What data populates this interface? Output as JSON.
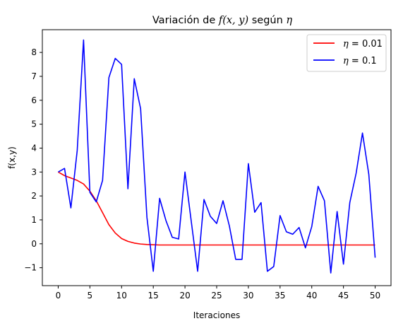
{
  "chart_data": {
    "type": "line",
    "title": "Variación de f(x, y) según η",
    "title_parts": {
      "prefix": "Variación de ",
      "func": "f(x, y)",
      "middle": " según ",
      "symbol": "η"
    },
    "xlabel": "Iteraciones",
    "ylabel": "f(x,y)",
    "xlim": [
      -2.5,
      52.5
    ],
    "ylim": [
      -1.75,
      8.95
    ],
    "xticks": [
      0,
      5,
      10,
      15,
      20,
      25,
      30,
      35,
      40,
      45,
      50
    ],
    "yticks": [
      -1,
      0,
      1,
      2,
      3,
      4,
      5,
      6,
      7,
      8
    ],
    "grid": false,
    "legend_position": "top-right",
    "series": [
      {
        "name": "η = 0.01",
        "legend_lhs": "η",
        "legend_rhs": "0.01",
        "color": "#ff0000",
        "x": [
          0,
          1,
          2,
          3,
          4,
          5,
          6,
          7,
          8,
          9,
          10,
          11,
          12,
          13,
          14,
          15,
          16,
          17,
          18,
          19,
          20,
          21,
          22,
          23,
          24,
          25,
          26,
          27,
          28,
          29,
          30,
          31,
          32,
          33,
          34,
          35,
          36,
          37,
          38,
          39,
          40,
          41,
          42,
          43,
          44,
          45,
          46,
          47,
          48,
          49,
          50
        ],
        "y": [
          3.0,
          2.85,
          2.75,
          2.65,
          2.5,
          2.2,
          1.8,
          1.3,
          0.8,
          0.45,
          0.22,
          0.1,
          0.03,
          -0.01,
          -0.03,
          -0.04,
          -0.05,
          -0.05,
          -0.05,
          -0.05,
          -0.05,
          -0.05,
          -0.05,
          -0.05,
          -0.05,
          -0.05,
          -0.05,
          -0.05,
          -0.05,
          -0.05,
          -0.05,
          -0.05,
          -0.05,
          -0.05,
          -0.05,
          -0.05,
          -0.05,
          -0.05,
          -0.05,
          -0.05,
          -0.05,
          -0.05,
          -0.05,
          -0.05,
          -0.05,
          -0.05,
          -0.05,
          -0.05,
          -0.05,
          -0.05,
          -0.05
        ]
      },
      {
        "name": "η = 0.1",
        "legend_lhs": "η",
        "legend_rhs": "0.1",
        "color": "#0000ff",
        "x": [
          0,
          1,
          2,
          3,
          4,
          5,
          6,
          7,
          8,
          9,
          10,
          11,
          12,
          13,
          14,
          15,
          16,
          17,
          18,
          19,
          20,
          21,
          22,
          23,
          24,
          25,
          26,
          27,
          28,
          29,
          30,
          31,
          32,
          33,
          34,
          35,
          36,
          37,
          38,
          39,
          40,
          41,
          42,
          43,
          44,
          45,
          46,
          47,
          48,
          49,
          50
        ],
        "y": [
          3.0,
          3.15,
          1.5,
          3.9,
          8.52,
          2.15,
          1.75,
          2.65,
          6.95,
          7.75,
          7.5,
          2.3,
          6.9,
          5.65,
          1.1,
          -1.15,
          1.9,
          0.97,
          0.27,
          0.2,
          3.0,
          0.92,
          -1.15,
          1.85,
          1.15,
          0.85,
          1.8,
          0.75,
          -0.65,
          -0.65,
          3.35,
          1.32,
          1.72,
          -1.15,
          -0.95,
          1.18,
          0.5,
          0.4,
          0.68,
          -0.17,
          0.72,
          2.4,
          1.8,
          -1.22,
          1.35,
          -0.85,
          1.72,
          2.95,
          4.63,
          2.9,
          -0.58
        ]
      }
    ]
  }
}
